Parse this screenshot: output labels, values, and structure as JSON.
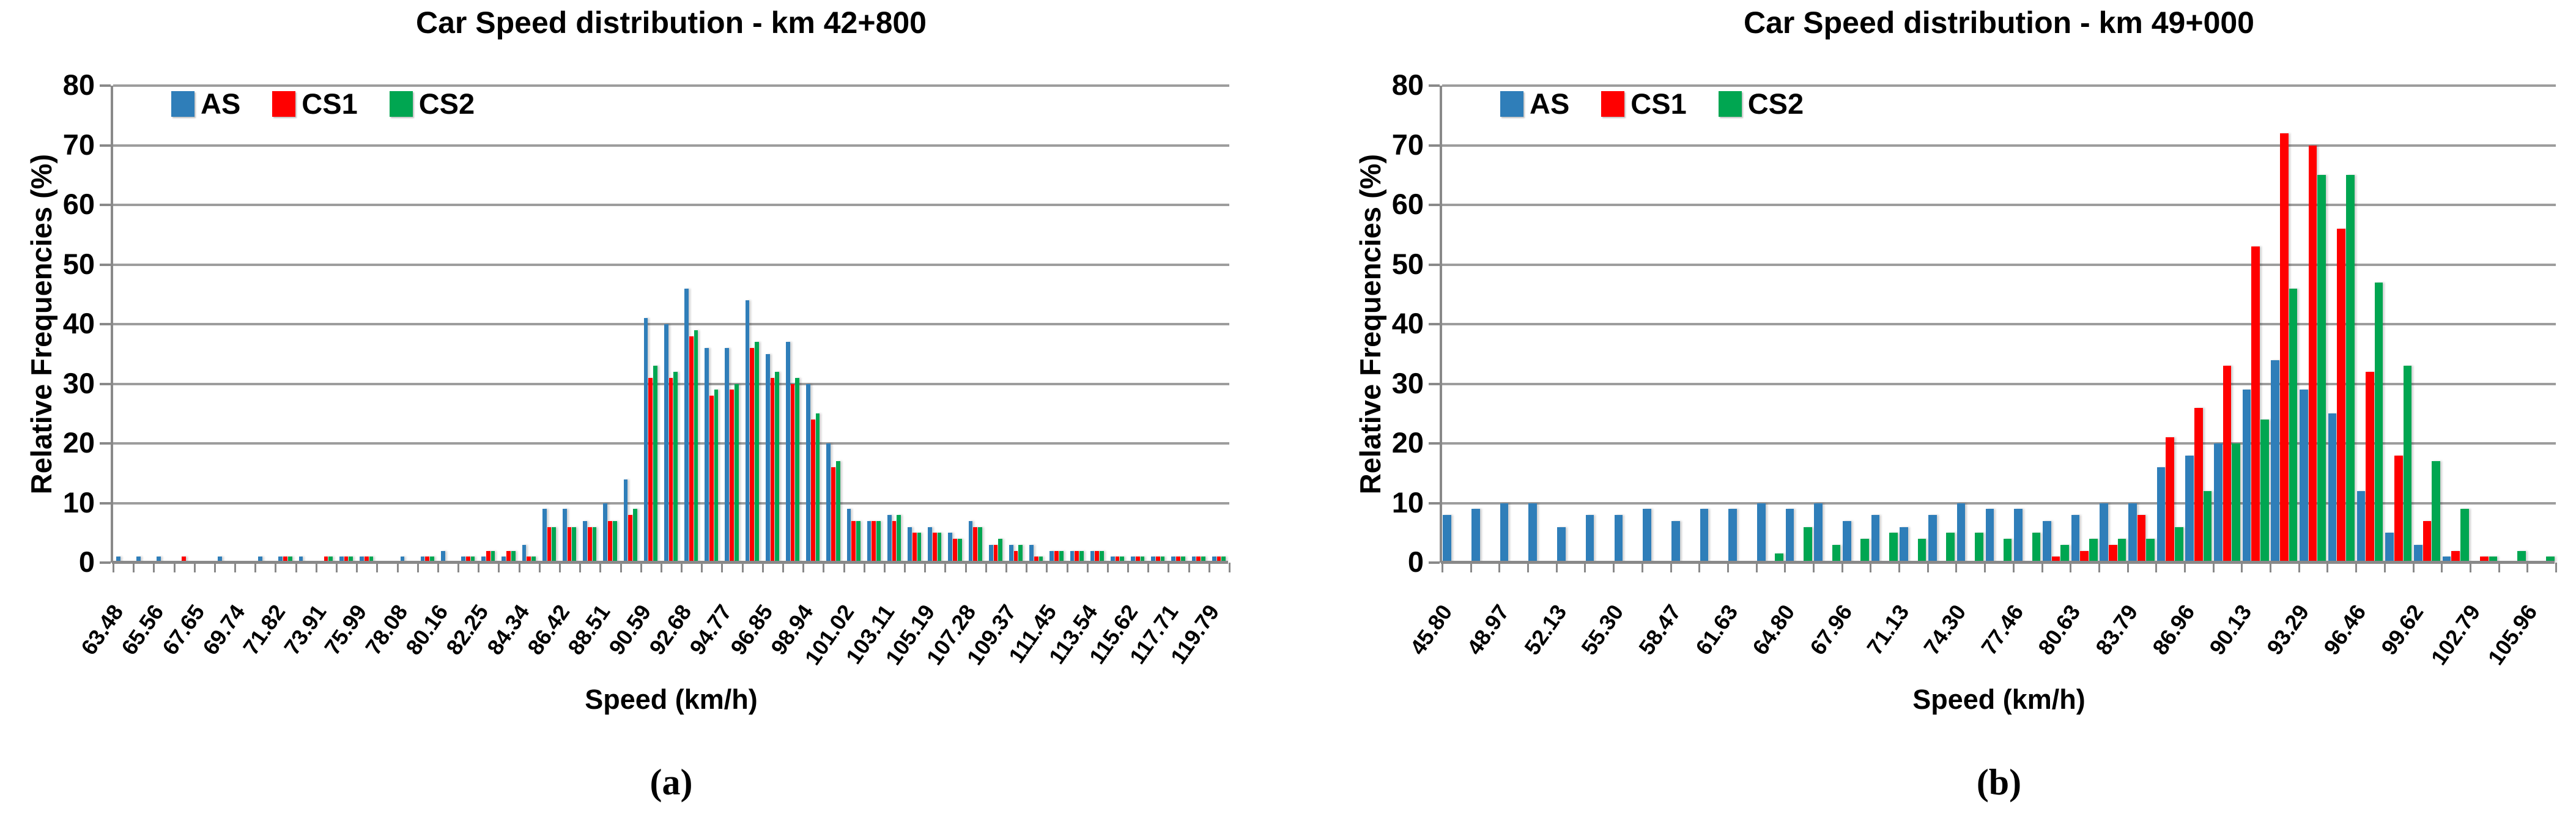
{
  "figure": {
    "captions": [
      "(a)",
      "(b)"
    ]
  },
  "colors": {
    "AS": "#2F7EB9",
    "CS1": "#FF0000",
    "CS2": "#00A651",
    "gridline": "#9D9D9D",
    "axis": "#898989",
    "text": "#000000"
  },
  "chart_data": [
    {
      "type": "bar",
      "title": "Car Speed distribution - km 42+800",
      "xlabel": "Speed (km/h)",
      "ylabel": "Relative Frequencies (%)",
      "ylim": [
        0,
        80
      ],
      "ytick_step": 10,
      "grid": "horizontal-on",
      "legend_position": "top-left-inside",
      "xlabel_every": 2,
      "categories": [
        "63.48",
        "64.52",
        "65.56",
        "66.61",
        "67.65",
        "68.69",
        "69.74",
        "70.78",
        "71.82",
        "72.87",
        "73.91",
        "74.95",
        "75.99",
        "77.04",
        "78.08",
        "79.12",
        "80.16",
        "81.21",
        "82.25",
        "83.29",
        "84.34",
        "85.38",
        "86.42",
        "87.47",
        "88.51",
        "89.55",
        "90.59",
        "91.63",
        "92.68",
        "93.72",
        "94.77",
        "95.81",
        "96.85",
        "97.90",
        "98.94",
        "99.98",
        "101.02",
        "102.07",
        "103.11",
        "104.15",
        "105.19",
        "106.24",
        "107.28",
        "108.32",
        "109.37",
        "110.41",
        "111.45",
        "112.49",
        "113.54",
        "114.58",
        "115.62",
        "116.66",
        "117.71",
        "118.75",
        "119.79"
      ],
      "series": [
        {
          "name": "AS",
          "color": "#2F7EB9",
          "values": [
            1,
            1,
            1,
            0,
            0,
            1,
            0,
            1,
            1,
            1,
            0,
            1,
            1,
            0,
            1,
            1,
            2,
            1,
            1,
            1,
            3,
            9,
            9,
            7,
            10,
            14,
            41,
            40,
            46,
            36,
            36,
            44,
            35,
            37,
            30,
            20,
            9,
            7,
            8,
            6,
            6,
            5,
            7,
            3,
            3,
            3,
            2,
            2,
            2,
            1,
            1,
            1,
            1,
            1,
            1
          ]
        },
        {
          "name": "CS1",
          "color": "#FF0000",
          "values": [
            0,
            0,
            0,
            1,
            0,
            0,
            0,
            0,
            1,
            0,
            1,
            1,
            1,
            0,
            0,
            1,
            0,
            1,
            2,
            2,
            1,
            6,
            6,
            6,
            7,
            8,
            31,
            31,
            38,
            28,
            29,
            36,
            31,
            30,
            24,
            16,
            7,
            7,
            7,
            5,
            5,
            4,
            6,
            3,
            2,
            1,
            2,
            2,
            2,
            1,
            1,
            1,
            1,
            1,
            1
          ]
        },
        {
          "name": "CS2",
          "color": "#00A651",
          "values": [
            0,
            0,
            0,
            0,
            0,
            0,
            0,
            0,
            1,
            0,
            1,
            1,
            1,
            0,
            0,
            1,
            0,
            1,
            2,
            2,
            1,
            6,
            6,
            6,
            7,
            9,
            33,
            32,
            39,
            29,
            30,
            37,
            32,
            31,
            25,
            17,
            7,
            7,
            8,
            5,
            5,
            4,
            6,
            4,
            3,
            1,
            2,
            2,
            2,
            1,
            1,
            1,
            1,
            1,
            1
          ]
        }
      ]
    },
    {
      "type": "bar",
      "title": "Car Speed distribution - km 49+000",
      "xlabel": "Speed (km/h)",
      "ylabel": "Relative Frequencies (%)",
      "ylim": [
        0,
        80
      ],
      "ytick_step": 10,
      "grid": "horizontal-on",
      "legend_position": "top-left-inside",
      "xlabel_every": 2,
      "categories": [
        "45.80",
        "47.38",
        "48.97",
        "50.55",
        "52.13",
        "53.72",
        "55.30",
        "56.88",
        "58.47",
        "60.05",
        "61.63",
        "63.22",
        "64.80",
        "66.38",
        "67.96",
        "69.55",
        "71.13",
        "72.71",
        "74.30",
        "75.88",
        "77.46",
        "79.05",
        "80.63",
        "82.21",
        "83.79",
        "85.38",
        "86.96",
        "88.54",
        "90.13",
        "91.71",
        "93.29",
        "94.88",
        "96.46",
        "98.04",
        "99.62",
        "101.21",
        "102.79",
        "104.38",
        "105.96"
      ],
      "series": [
        {
          "name": "AS",
          "color": "#2F7EB9",
          "values": [
            8,
            9,
            10,
            10,
            6,
            8,
            8,
            9,
            7,
            9,
            9,
            10,
            9,
            10,
            7,
            8,
            6,
            8,
            10,
            9,
            9,
            7,
            8,
            10,
            10,
            16,
            18,
            20,
            29,
            34,
            29,
            25,
            12,
            5,
            3,
            1,
            0,
            0,
            0
          ]
        },
        {
          "name": "CS1",
          "color": "#FF0000",
          "values": [
            0,
            0,
            0,
            0,
            0,
            0,
            0,
            0,
            0,
            0,
            0,
            0,
            0,
            0,
            0,
            0,
            0,
            0,
            0,
            0,
            0,
            1,
            2,
            3,
            8,
            21,
            26,
            33,
            53,
            72,
            70,
            56,
            32,
            18,
            7,
            2,
            1,
            0,
            0
          ]
        },
        {
          "name": "CS2",
          "color": "#00A651",
          "values": [
            0,
            0,
            0,
            0,
            0,
            0,
            0,
            0,
            0,
            0,
            0,
            1.5,
            6,
            3,
            4,
            5,
            4,
            5,
            5,
            4,
            5,
            3,
            4,
            4,
            4,
            6,
            12,
            20,
            24,
            46,
            65,
            65,
            47,
            33,
            17,
            9,
            1,
            2,
            1
          ]
        }
      ]
    }
  ]
}
